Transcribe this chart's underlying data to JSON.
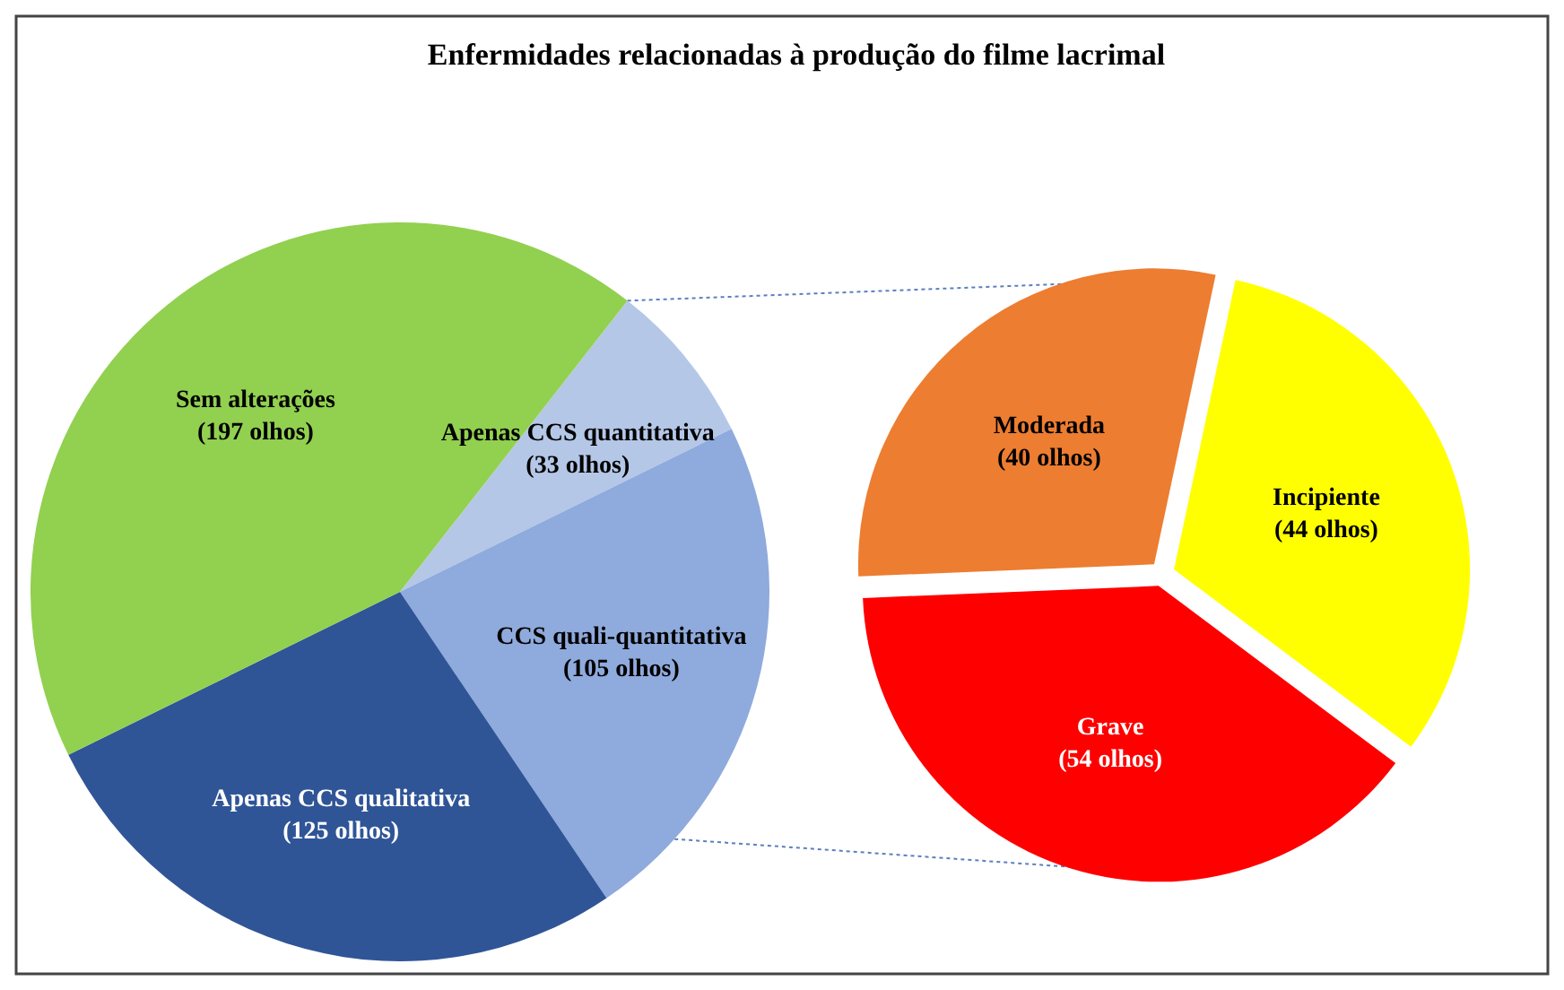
{
  "chart_data": [
    {
      "type": "pie",
      "title": "Enfermidades relacionadas à produção do filme lacrimal",
      "categories": [
        "Apenas CCS quantitativa",
        "CCS quali-quantitativa",
        "Apenas CCS qualitativa",
        "Sem alterações"
      ],
      "values": [
        33,
        105,
        125,
        197
      ],
      "value_labels": [
        "(33 olhos)",
        "(105 olhos)",
        "(125 olhos)",
        "(197 olhos)"
      ],
      "colors": [
        "#b4c7e7",
        "#8faadc",
        "#2f5597",
        "#92d050"
      ]
    },
    {
      "type": "pie",
      "categories": [
        "Incipiente",
        "Grave",
        "Moderada"
      ],
      "values": [
        44,
        54,
        40
      ],
      "value_labels": [
        "(44 olhos)",
        "(54 olhos)",
        "(40 olhos)"
      ],
      "colors": [
        "#ffff00",
        "#ff0000",
        "#ed7d31"
      ]
    }
  ]
}
